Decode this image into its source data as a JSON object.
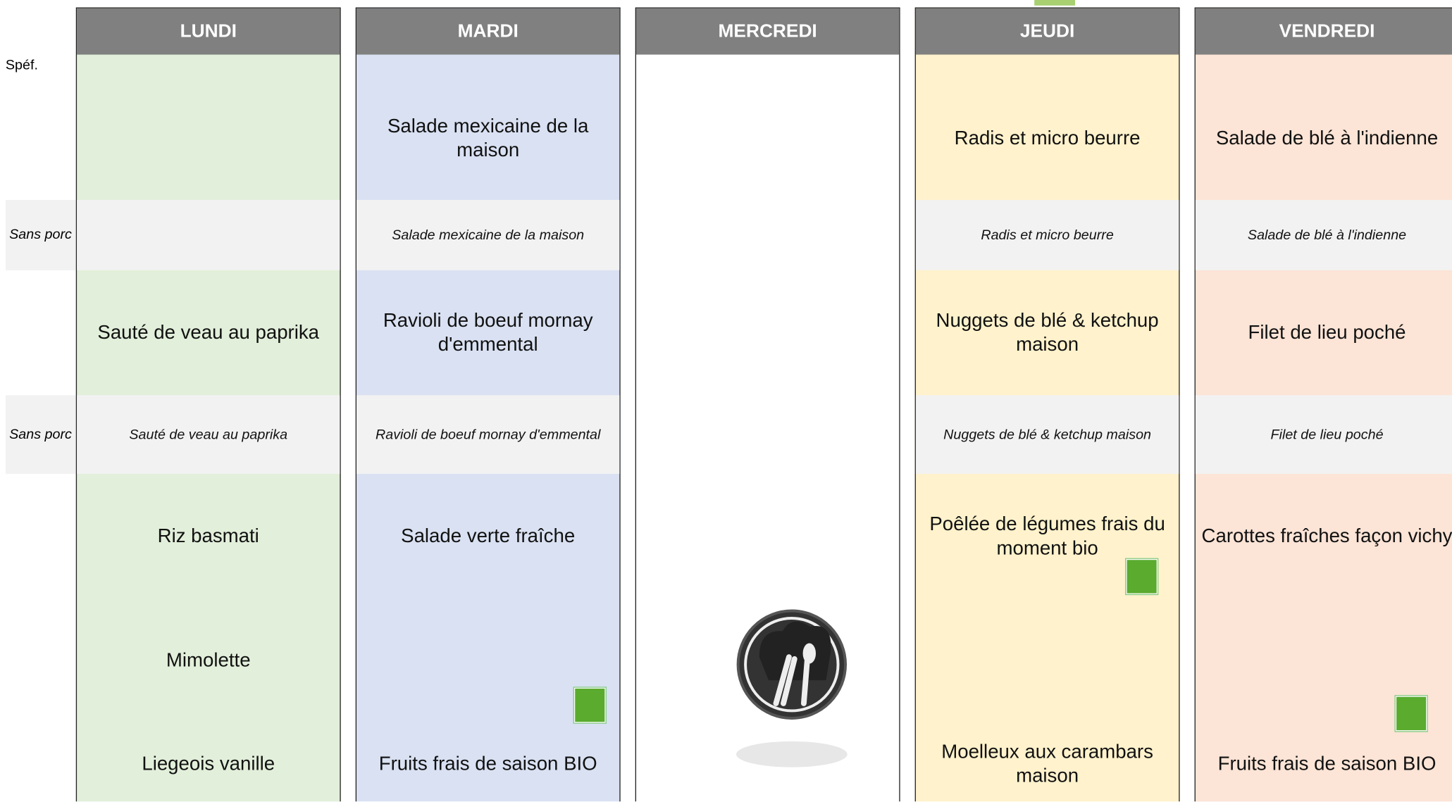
{
  "row_labels": [
    "Spéf.",
    "Sans porc",
    "Sans porc"
  ],
  "columns": [
    {
      "header": "LUNDI",
      "color": "#e2efda",
      "items": {
        "plat": "Sauté de veau au paprika",
        "plat_sp": "Sauté de veau au paprika",
        "accomp": "Riz basmati",
        "fromage": "Mimolette",
        "dessert": "Liegeois vanille"
      }
    },
    {
      "header": "MARDI",
      "color": "#d9e1f2",
      "items": {
        "entree": "Salade mexicaine de la maison",
        "entree_sp": "Salade mexicaine de la maison",
        "plat": "Ravioli de boeuf  mornay d'emmental",
        "plat_sp": "Ravioli de boeuf  mornay d'emmental",
        "accomp": "Salade verte fraîche",
        "dessert": "Fruits frais de saison BIO"
      }
    },
    {
      "header": "MERCREDI",
      "color": "#ffffff",
      "items": {}
    },
    {
      "header": "JEUDI",
      "color": "#fff2cc",
      "items": {
        "entree": "Radis et micro beurre",
        "entree_sp": "Radis et micro beurre",
        "plat": "Nuggets de blé & ketchup maison",
        "plat_sp": "Nuggets de blé & ketchup maison",
        "accomp": "Poêlée de légumes frais du moment bio",
        "dessert": "Moelleux aux carambars maison"
      }
    },
    {
      "header": "VENDREDI",
      "color": "#fce4d6",
      "items": {
        "entree": "Salade de blé à l'indienne",
        "entree_sp": "Salade de blé à l'indienne",
        "plat": "Filet de lieu poché",
        "plat_sp": "Filet de lieu poché",
        "accomp": "Carottes fraîches façon vichy",
        "dessert": "Fruits frais de saison BIO"
      }
    }
  ]
}
